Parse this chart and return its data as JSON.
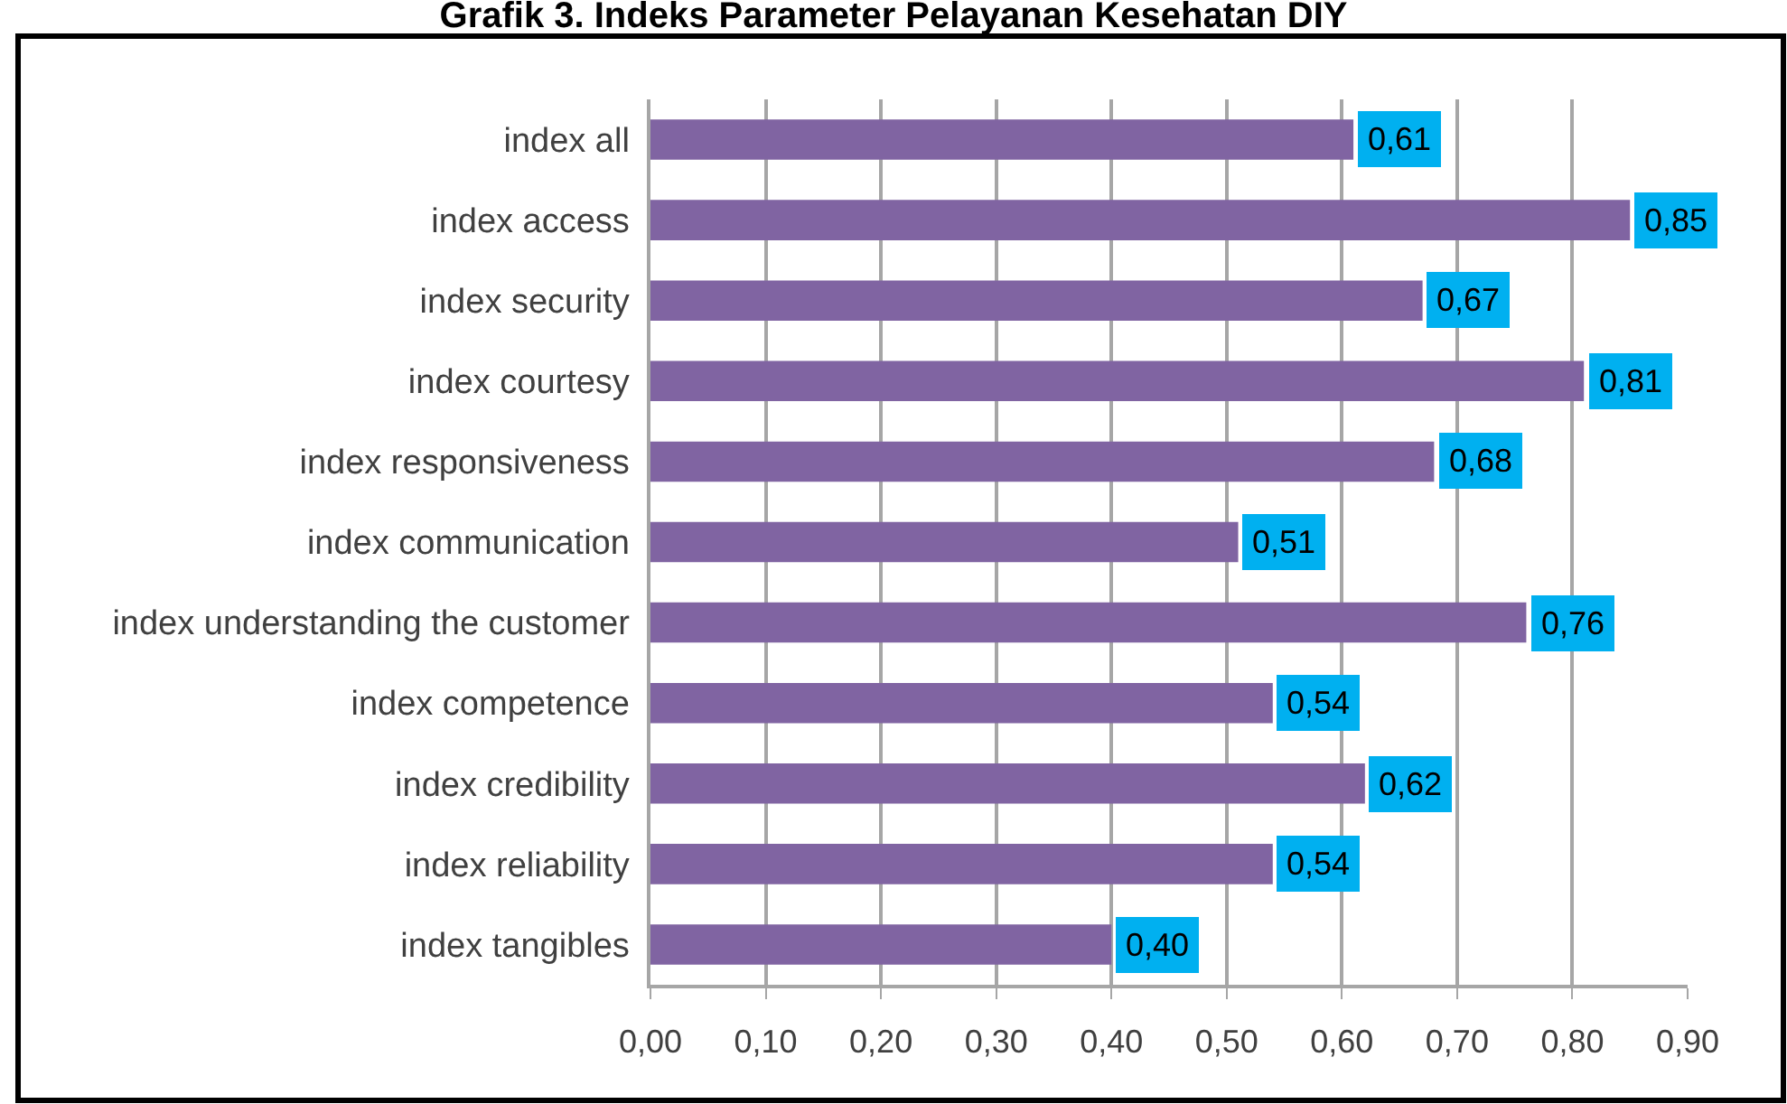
{
  "chart_data": {
    "type": "bar",
    "orientation": "horizontal",
    "title": "Grafik 3. Indeks Parameter Pelayanan Kesehatan DIY",
    "categories": [
      "index all",
      "index access",
      "index security",
      "index courtesy",
      "index responsiveness",
      "index communication",
      "index understanding the customer",
      "index competence",
      "index credibility",
      "index reliability",
      "index tangibles"
    ],
    "values": [
      0.61,
      0.85,
      0.67,
      0.81,
      0.68,
      0.51,
      0.76,
      0.54,
      0.62,
      0.54,
      0.4
    ],
    "value_labels": [
      "0,61",
      "0,85",
      "0,67",
      "0,81",
      "0,68",
      "0,51",
      "0,76",
      "0,54",
      "0,62",
      "0,54",
      "0,40"
    ],
    "color": "#8064a2",
    "xlim": [
      0,
      0.9
    ],
    "xticks": [
      {
        "value": 0,
        "label": "0,00"
      },
      {
        "value": 0.1,
        "label": "0,10"
      },
      {
        "value": 0.2,
        "label": "0,20"
      },
      {
        "value": 0.3,
        "label": "0,30"
      },
      {
        "value": 0.4,
        "label": "0,40"
      },
      {
        "value": 0.5,
        "label": "0,50"
      },
      {
        "value": 0.6,
        "label": "0,60"
      },
      {
        "value": 0.7,
        "label": "0,70"
      },
      {
        "value": 0.8,
        "label": "0,80"
      },
      {
        "value": 0.9,
        "label": "0,90"
      }
    ],
    "grid": "x"
  }
}
